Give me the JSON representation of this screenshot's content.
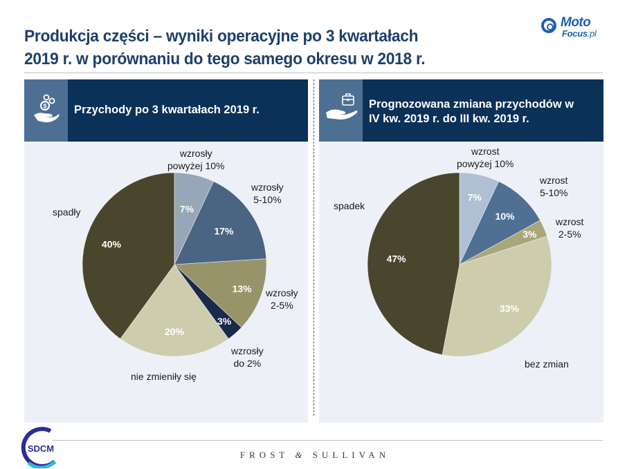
{
  "header": {
    "title_line1": "Produkcja części – wyniki operacyjne po 3 kwartałach",
    "title_line2": "2019 r. w porównaniu do tego samego okresu w 2018 r.",
    "logo": {
      "name": "MotoFocus.pl",
      "part1": "Moto",
      "part2": "Focus",
      "part3": ".pl",
      "color": "#1d5fae"
    }
  },
  "panels": [
    {
      "icon": "hand-coins-icon",
      "heading": "Przychody po 3 kwartałach 2019 r."
    },
    {
      "icon": "hand-briefcase-icon",
      "heading_line1": "Prognozowana zmiana przychodów w",
      "heading_line2": "IV kw. 2019 r. do III kw. 2019 r."
    }
  ],
  "chart_data": [
    {
      "type": "pie",
      "title": "Przychody po 3 kwartałach 2019 r.",
      "start": "12 o'clock, clockwise",
      "slices": [
        {
          "label": "wzrosły powyżej 10%",
          "label_line1": "wzrosły",
          "label_line2": "powyżej 10%",
          "value": 7,
          "value_label": "7%",
          "color": "#97a6b8"
        },
        {
          "label": "wzrosły 5-10%",
          "label_line1": "wzrosły",
          "label_line2": "5-10%",
          "value": 17,
          "value_label": "17%",
          "color": "#4a6583"
        },
        {
          "label": "wzrosły 2-5%",
          "label_line1": "wzrosły",
          "label_line2": "2-5%",
          "value": 13,
          "value_label": "13%",
          "color": "#979469"
        },
        {
          "label": "wzrosły do 2%",
          "label_line1": "wzrosły",
          "label_line2": "do 2%",
          "value": 3,
          "value_label": "3%",
          "color": "#1b2a4a"
        },
        {
          "label": "nie zmieniły się",
          "label_line1": "nie zmieniły się",
          "label_line2": "",
          "value": 20,
          "value_label": "20%",
          "color": "#cdcdad"
        },
        {
          "label": "spadły",
          "label_line1": "spadły",
          "label_line2": "",
          "value": 40,
          "value_label": "40%",
          "color": "#4a452d"
        }
      ]
    },
    {
      "type": "pie",
      "title": "Prognozowana zmiana przychodów w IV kw. 2019 r. do III kw. 2019 r.",
      "start": "12 o'clock, clockwise",
      "slices": [
        {
          "label": "wzrost powyżej 10%",
          "label_line1": "wzrost",
          "label_line2": "powyżej 10%",
          "value": 7,
          "value_label": "7%",
          "color": "#afc0d4"
        },
        {
          "label": "wzrost 5-10%",
          "label_line1": "wzrost",
          "label_line2": "5-10%",
          "value": 10,
          "value_label": "10%",
          "color": "#4f6f93"
        },
        {
          "label": "wzrost 2-5%",
          "label_line1": "wzrost",
          "label_line2": "2-5%",
          "value": 3,
          "value_label": "3%",
          "color": "#a9a77a"
        },
        {
          "label": "bez zmian",
          "label_line1": "bez zmian",
          "label_line2": "",
          "value": 33,
          "value_label": "33%",
          "color": "#cdcdad"
        },
        {
          "label": "spadek",
          "label_line1": "spadek",
          "label_line2": "",
          "value": 47,
          "value_label": "47%",
          "color": "#4a452d"
        }
      ]
    }
  ],
  "footer": {
    "left_logo": "SDCM",
    "brand": "FROST & SULLIVAN",
    "brand_part1": "FROST",
    "brand_amp": "&",
    "brand_part2": "SULLIVAN"
  }
}
